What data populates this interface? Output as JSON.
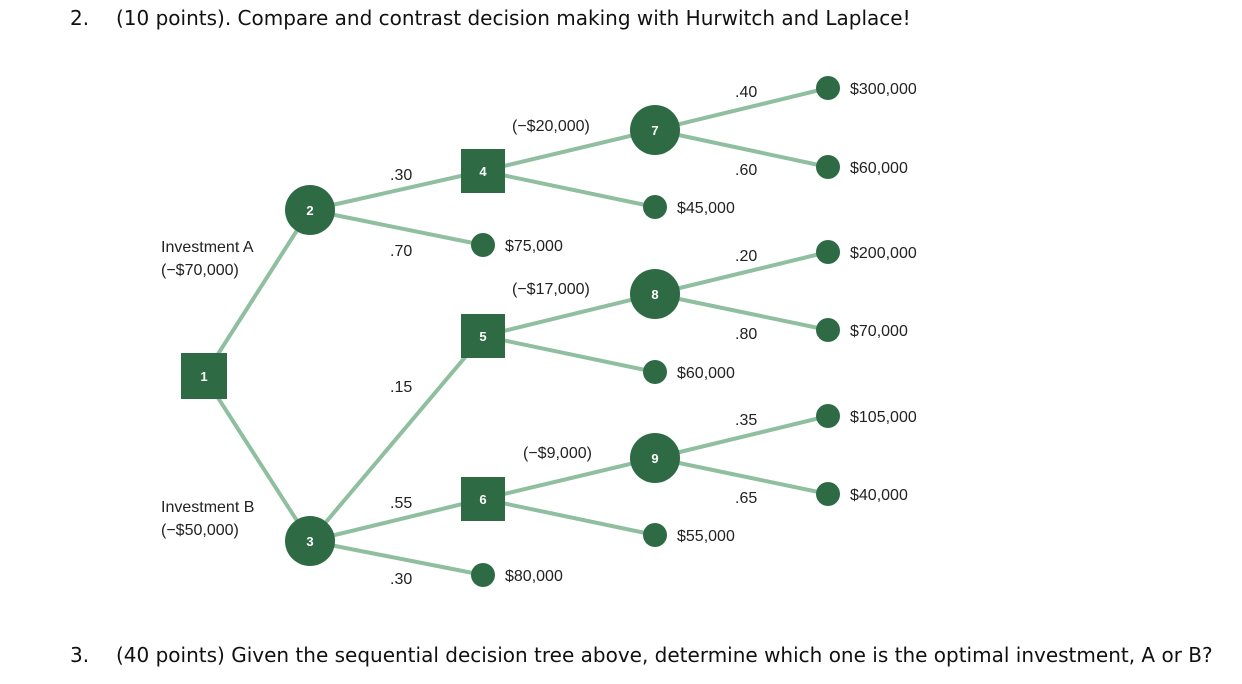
{
  "question2": {
    "number": "2.",
    "text": "(10 points). Compare and contrast decision making with Hurwitch and Laplace!"
  },
  "question3": {
    "number": "3.",
    "text": "(40 points) Given the sequential decision  tree above, determine which one is the optimal investment, A or B?"
  },
  "tree": {
    "color": "#2e6b45",
    "branch_color": "#8fbf9f",
    "nodes": {
      "n1": "1",
      "n2": "2",
      "n3": "3",
      "n4": "4",
      "n5": "5",
      "n6": "6",
      "n7": "7",
      "n8": "8",
      "n9": "9"
    },
    "investment_a": {
      "name": "Investment A",
      "cost": "(−$70,000)"
    },
    "investment_b": {
      "name": "Investment B",
      "cost": "(−$50,000)"
    },
    "probabilities": {
      "p2_4": ".30",
      "p2_a": ".70",
      "p3_5": ".15",
      "p3_6": ".55",
      "p3_b": ".30",
      "p7_a": ".40",
      "p7_b": ".60",
      "p8_a": ".20",
      "p8_b": ".80",
      "p9_a": ".35",
      "p9_b": ".65"
    },
    "costs": {
      "c4": "(−$20,000)",
      "c5": "(−$17,000)",
      "c6": "(−$9,000)"
    },
    "payoffs": {
      "v75": "$75,000",
      "v80": "$80,000",
      "v45": "$45,000",
      "v60b": "$60,000",
      "v55": "$55,000",
      "v300": "$300,000",
      "v60": "$60,000",
      "v200": "$200,000",
      "v70": "$70,000",
      "v105": "$105,000",
      "v40": "$40,000"
    }
  }
}
